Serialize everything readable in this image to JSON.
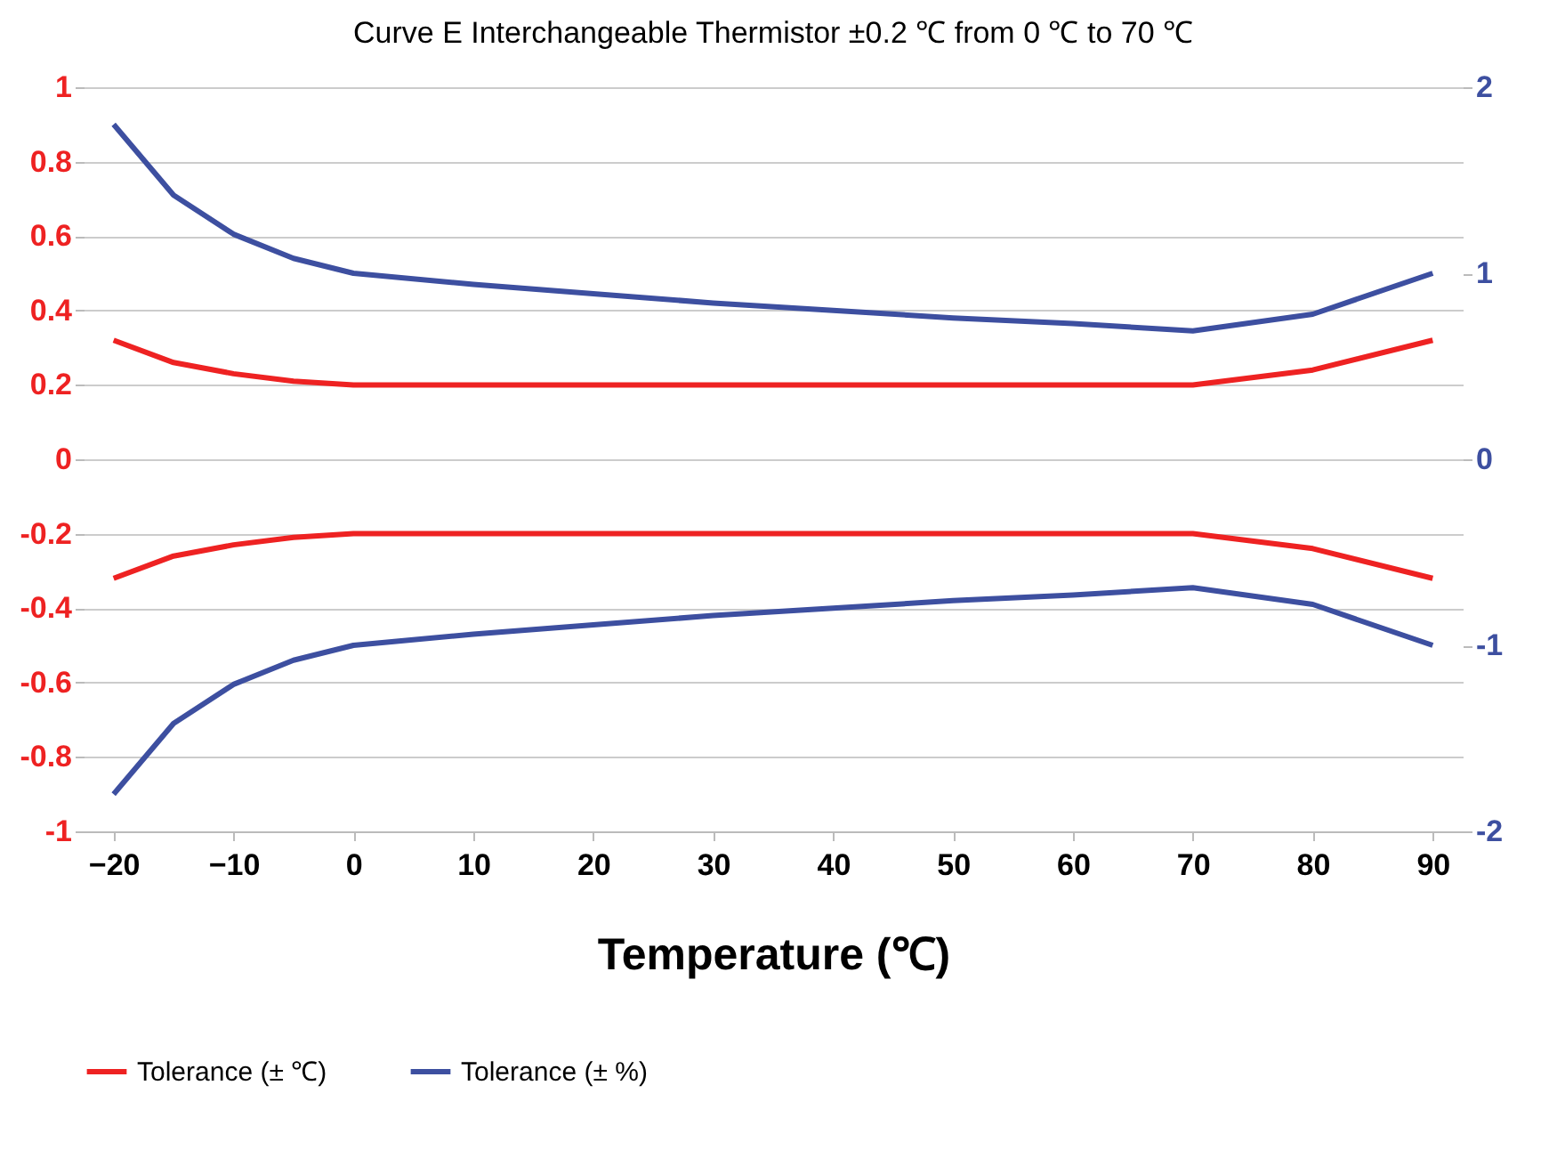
{
  "chart_data": {
    "type": "line",
    "title": "Curve E Interchangeable Thermistor ±0.2 ℃ from 0 ℃ to 70 ℃",
    "xlabel": "Temperature (℃)",
    "x": [
      -20,
      -15,
      -10,
      -5,
      0,
      10,
      20,
      30,
      40,
      50,
      60,
      70,
      80,
      90
    ],
    "series": [
      {
        "name": "Tolerance (± ℃)",
        "color": "#ee2222",
        "values": [
          0.32,
          0.26,
          0.23,
          0.21,
          0.2,
          0.2,
          0.2,
          0.2,
          0.2,
          0.2,
          0.2,
          0.2,
          0.24,
          0.32
        ]
      },
      {
        "color": "#ee2222",
        "values": [
          -0.32,
          -0.26,
          -0.23,
          -0.21,
          -0.2,
          -0.2,
          -0.2,
          -0.2,
          -0.2,
          -0.2,
          -0.2,
          -0.2,
          -0.24,
          -0.32
        ]
      },
      {
        "name": "Tolerance (± %)",
        "color": "#3d4fa0",
        "axis": "y2",
        "values": [
          1.8,
          1.42,
          1.21,
          1.08,
          1.0,
          0.94,
          0.89,
          0.84,
          0.8,
          0.76,
          0.73,
          0.69,
          0.78,
          1.0
        ]
      },
      {
        "color": "#3d4fa0",
        "axis": "y2",
        "values": [
          -1.8,
          -1.42,
          -1.21,
          -1.08,
          -1.0,
          -0.94,
          -0.89,
          -0.84,
          -0.8,
          -0.76,
          -0.73,
          -0.69,
          -0.78,
          -1.0
        ]
      }
    ],
    "xlim": [
      -22.5,
      92.5
    ],
    "xticks": [
      -20,
      -10,
      0,
      10,
      20,
      30,
      40,
      50,
      60,
      70,
      80,
      90
    ],
    "ylim": [
      -1,
      1
    ],
    "yticks": [
      -1,
      -0.8,
      -0.6,
      -0.4,
      -0.2,
      0,
      0.2,
      0.4,
      0.6,
      0.8,
      1
    ],
    "y2lim": [
      -2,
      2
    ],
    "y2ticks": [
      -2,
      -1,
      0,
      1,
      2
    ],
    "grid": "y",
    "legend": "bottom",
    "line_style": "solid",
    "marker": "none"
  }
}
